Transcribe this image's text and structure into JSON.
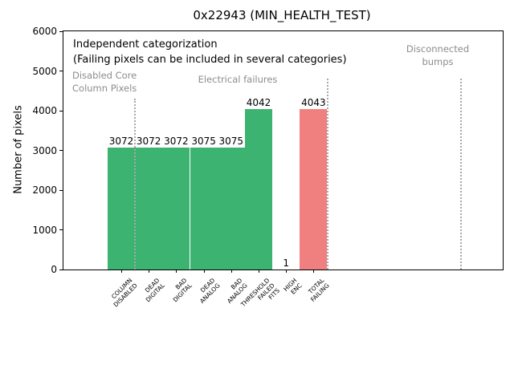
{
  "window": {
    "title": "0x22943 (MIN_HEALTH_TEST)"
  },
  "annotations": {
    "independent_note": "Independent categorization\n(Failing pixels can be included in several categories)",
    "section_labels": [
      "Disabled Core\nColumn Pixels",
      "Electrical failures",
      "Disconnected\nbumps"
    ]
  },
  "colors": {
    "bar_green": "#3cb371",
    "bar_red": "#f08080",
    "annotation_gray": "#8c8c8c",
    "separator_gray": "#a8a8a8",
    "axis_black": "#000000"
  },
  "chart_data": {
    "type": "bar",
    "title": "0x22943 (MIN_HEALTH_TEST)",
    "xlabel": "",
    "ylabel": "Number of pixels",
    "ylim": [
      0,
      6000
    ],
    "yticks": [
      0,
      1000,
      2000,
      3000,
      4000,
      5000,
      6000
    ],
    "grid": false,
    "legend_position": "none",
    "categories": [
      "COLUMN\nDISABLED",
      "DEAD\nDIGITAL",
      "BAD\nDIGITAL",
      "DEAD\nANALOG",
      "BAD\nANALOG",
      "THRESHOLD\nFAILED\nFITS",
      "HIGH\nENC",
      "TOTAL\nFAILING"
    ],
    "values": [
      3072,
      3072,
      3072,
      3075,
      3075,
      4042,
      1,
      4043
    ],
    "bar_colors": [
      "#3cb371",
      "#3cb371",
      "#3cb371",
      "#3cb371",
      "#3cb371",
      "#3cb371",
      "#3cb371",
      "#f08080"
    ],
    "value_labels": [
      "3072",
      "3072",
      "3072",
      "3075",
      "3075",
      "4042",
      "1",
      "4043"
    ],
    "annotations": [
      "Independent categorization",
      "(Failing pixels can be included in several categories)",
      "Disabled Core Column Pixels",
      "Electrical failures",
      "Disconnected bumps"
    ],
    "sections": [
      {
        "label": "Disabled Core\nColumn Pixels",
        "categories_covered": [
          "COLUMN\nDISABLED"
        ]
      },
      {
        "label": "Electrical failures",
        "categories_covered": [
          "DEAD\nDIGITAL",
          "BAD\nDIGITAL",
          "DEAD\nANALOG",
          "BAD\nANALOG",
          "THRESHOLD\nFAILED\nFITS",
          "HIGH\nENC",
          "TOTAL\nFAILING"
        ]
      },
      {
        "label": "Disconnected\nbumps",
        "categories_covered": []
      }
    ],
    "separators": [
      {
        "x_index": 0.5,
        "top_value": 4300
      },
      {
        "x_index": 7.5,
        "top_value": 4800
      },
      {
        "x_index": 12.37,
        "top_value": 4800
      }
    ]
  }
}
